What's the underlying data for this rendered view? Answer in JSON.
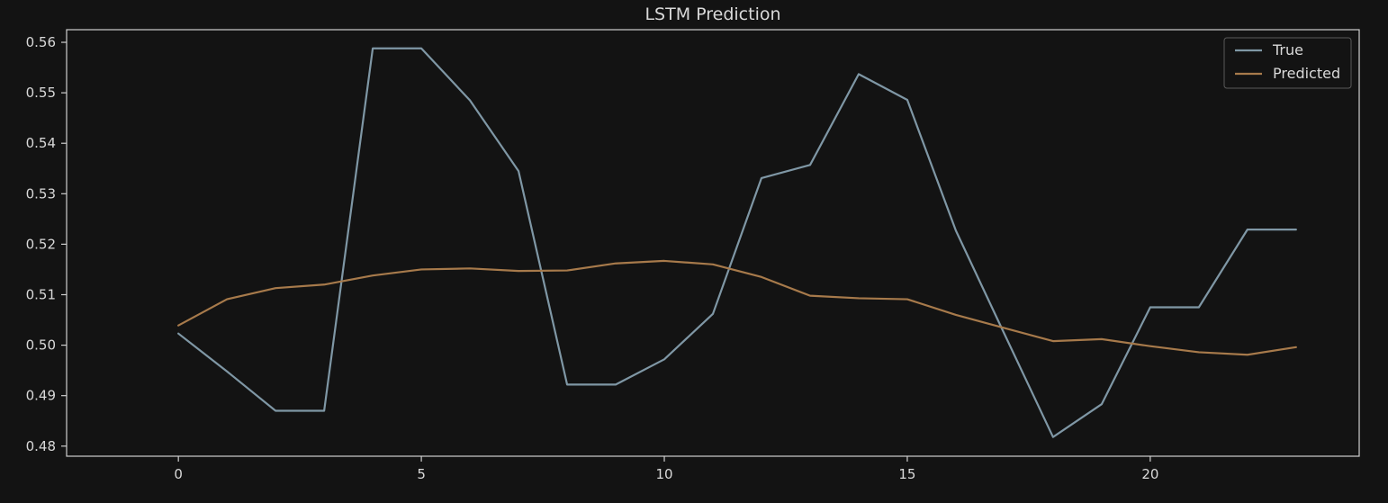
{
  "chart_data": {
    "type": "line",
    "title": "LSTM Prediction",
    "xlabel": "",
    "ylabel": "",
    "xlim": [
      -2.3,
      24.3
    ],
    "ylim": [
      0.478,
      0.5625
    ],
    "x": [
      0,
      1,
      2,
      3,
      4,
      5,
      6,
      7,
      8,
      9,
      10,
      11,
      12,
      13,
      14,
      15,
      16,
      17,
      18,
      19,
      20,
      21,
      22,
      23
    ],
    "x_ticks": [
      0,
      5,
      10,
      15,
      20
    ],
    "y_ticks": [
      0.48,
      0.49,
      0.5,
      0.51,
      0.52,
      0.53,
      0.54,
      0.55,
      0.56
    ],
    "x_tick_labels": [
      "0",
      "5",
      "10",
      "15",
      "20"
    ],
    "y_tick_labels": [
      "0.48",
      "0.49",
      "0.50",
      "0.51",
      "0.52",
      "0.53",
      "0.54",
      "0.55",
      "0.56"
    ],
    "grid": false,
    "legend_position": "top-right",
    "series": [
      {
        "name": "True",
        "color": "#7f97a5",
        "values": [
          0.5023,
          0.4948,
          0.487,
          0.487,
          0.5588,
          0.5588,
          0.5485,
          0.5345,
          0.4922,
          0.4922,
          0.4972,
          0.5062,
          0.5331,
          0.5357,
          0.5537,
          0.5486,
          0.5227,
          0.5022,
          0.4818,
          0.4883,
          0.5075,
          0.5075,
          0.5229,
          0.5229
        ]
      },
      {
        "name": "Predicted",
        "color": "#a77a4b",
        "values": [
          0.5039,
          0.5091,
          0.5113,
          0.512,
          0.5138,
          0.515,
          0.5152,
          0.5147,
          0.5148,
          0.5162,
          0.5167,
          0.516,
          0.5135,
          0.5098,
          0.5093,
          0.5091,
          0.506,
          0.5034,
          0.5008,
          0.5012,
          0.4998,
          0.4986,
          0.4981,
          0.4996
        ]
      }
    ]
  }
}
